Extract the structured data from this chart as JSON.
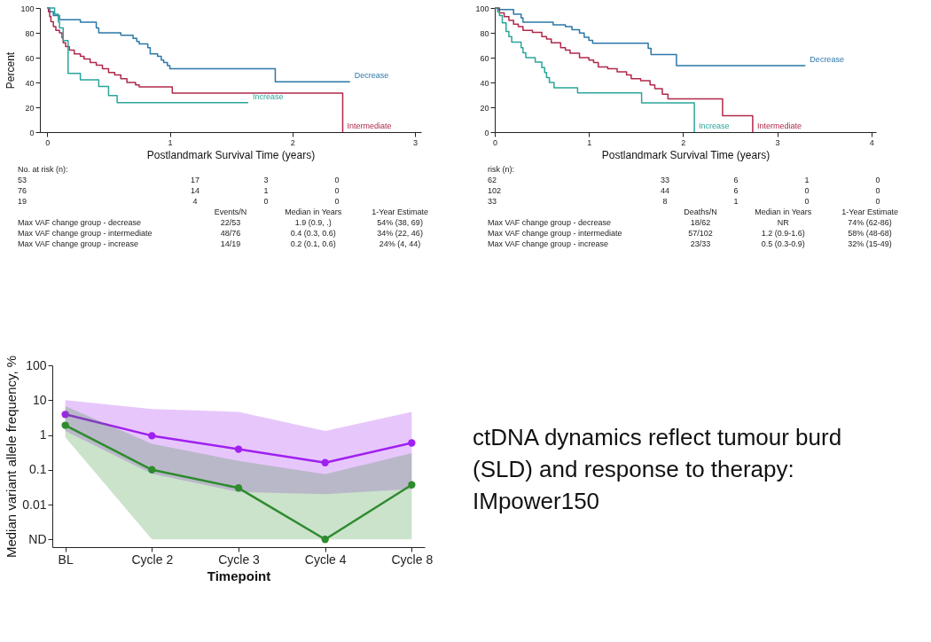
{
  "chart_data": [
    {
      "type": "step",
      "xlabel": "Postlandmark Survival Time (years)",
      "ylabel": "Percent",
      "xlim": [
        -0.06,
        3.05
      ],
      "ylim": [
        0,
        100
      ],
      "xticks": [
        0,
        1,
        2,
        3
      ],
      "yticks": [
        0,
        20,
        40,
        60,
        80,
        100
      ],
      "grid": false,
      "series": [
        {
          "name": "Decrease",
          "color": "#2b78a8",
          "x": [
            0,
            0.02,
            0.05,
            0.1,
            0.27,
            0.4,
            0.42,
            0.6,
            0.7,
            0.73,
            0.75,
            0.82,
            0.84,
            0.9,
            0.93,
            0.95,
            0.98,
            1.0,
            1.86,
            2.47
          ],
          "values": [
            100,
            97,
            94,
            90.5,
            88.6,
            84,
            80,
            78,
            75.5,
            73,
            71,
            68,
            63,
            61,
            58,
            56,
            53.5,
            51,
            40.5,
            40.5
          ]
        },
        {
          "name": "Intermediate",
          "color": "#b0284a",
          "x": [
            0,
            0.01,
            0.02,
            0.03,
            0.05,
            0.07,
            0.1,
            0.12,
            0.13,
            0.15,
            0.18,
            0.22,
            0.27,
            0.3,
            0.35,
            0.4,
            0.45,
            0.5,
            0.55,
            0.6,
            0.65,
            0.72,
            0.75,
            1.02,
            2.41
          ],
          "values": [
            100,
            97,
            93,
            89,
            85,
            82,
            80,
            76,
            72,
            69,
            66,
            63,
            61,
            59,
            56,
            54,
            51,
            48,
            46,
            43,
            40,
            38,
            36.5,
            31.5,
            0
          ]
        },
        {
          "name": "Increase",
          "color": "#2aa59a",
          "x": [
            0,
            0.06,
            0.09,
            0.1,
            0.13,
            0.17,
            0.27,
            0.42,
            0.5,
            0.57,
            1.64
          ],
          "values": [
            100,
            95,
            89,
            84,
            73.7,
            47.4,
            42.1,
            36.8,
            29.4,
            23.7,
            23.7
          ]
        }
      ],
      "annotations": [
        "No. at risk (n):",
        "53\t17\t3\t0",
        "76\t14\t1\t0",
        "19\t4\t0\t0",
        "\tEvents/N\tMedian in Years\t1-Year Estimate",
        "Max VAF change group - decrease\t22/53\t1.9 (0.9, .)\t54% (38, 69)",
        "Max VAF change group - intermediate\t48/76\t0.4 (0.3, 0.6)\t34% (22, 46)",
        "Max VAF change group - increase\t14/19\t0.2 (0.1, 0.6)\t24% (4, 44)"
      ]
    },
    {
      "type": "step",
      "xlabel": "Postlandmark Survival Time (years)",
      "xlim": [
        0,
        4.05
      ],
      "ylim": [
        0,
        100
      ],
      "xticks": [
        0,
        1,
        2,
        3,
        4
      ],
      "yticks": [
        0,
        20,
        40,
        60,
        80,
        100
      ],
      "grid": false,
      "series": [
        {
          "name": "Decrease",
          "color": "#2b78a8",
          "x": [
            0,
            0.03,
            0.2,
            0.28,
            0.3,
            0.62,
            0.75,
            0.82,
            0.9,
            0.95,
            1.0,
            1.04,
            1.63,
            1.66,
            1.93,
            3.3
          ],
          "values": [
            100,
            98.8,
            95,
            92,
            88.5,
            86.5,
            85,
            82.5,
            79.8,
            76.5,
            74,
            71.6,
            67.5,
            62.5,
            53.6,
            53.6
          ]
        },
        {
          "name": "Intermediate",
          "color": "#b0284a",
          "x": [
            0,
            0.05,
            0.1,
            0.15,
            0.2,
            0.25,
            0.3,
            0.4,
            0.5,
            0.55,
            0.6,
            0.7,
            0.75,
            0.8,
            0.9,
            1.0,
            1.05,
            1.1,
            1.2,
            1.3,
            1.4,
            1.45,
            1.55,
            1.65,
            1.7,
            1.78,
            1.84,
            2.42,
            2.74
          ],
          "values": [
            100,
            96,
            93,
            90,
            87,
            85,
            82,
            80.3,
            77,
            75,
            72,
            68,
            66,
            63.5,
            60,
            58,
            56,
            52.5,
            51,
            48.5,
            46,
            43,
            41.5,
            38,
            35,
            30.5,
            26.7,
            13.3,
            0
          ]
        },
        {
          "name": "Increase",
          "color": "#2aa59a",
          "x": [
            0,
            0.03,
            0.05,
            0.08,
            0.12,
            0.15,
            0.18,
            0.28,
            0.3,
            0.33,
            0.43,
            0.5,
            0.53,
            0.55,
            0.58,
            0.63,
            0.88,
            1.56,
            2.12
          ],
          "values": [
            100,
            97,
            94,
            88,
            81,
            77,
            72.5,
            68,
            64,
            60,
            56.5,
            52,
            48,
            44,
            40,
            35.8,
            31.6,
            23.5,
            0
          ]
        }
      ],
      "annotations": [
        "risk (n):",
        "62\t33\t6\t1\t0",
        "102\t44\t6\t0\t0",
        "33\t8\t1\t0\t0",
        "\tDeaths/N\tMedian in Years\t1-Year Estimate",
        "Max VAF change group - decrease\t18/62\tNR\t74% (62-86)",
        "Max VAF change group - intermediate\t57/102\t1.2 (0.9-1.6)\t58% (48-68)",
        "Max VAF change group - increase\t23/33\t0.5 (0.3-0.9)\t32% (15-49)"
      ]
    },
    {
      "type": "line",
      "xlabel": "Timepoint",
      "ylabel": "Median variant allele frequency, %",
      "log": true,
      "marker": "circle",
      "grid": false,
      "categories": [
        "BL",
        "Cycle 2",
        "Cycle 3",
        "Cycle 4",
        "Cycle 8"
      ],
      "ylim": [
        0.0006,
        100
      ],
      "yticks": [
        {
          "value": 0.001,
          "label": "ND"
        },
        0.01,
        0.1,
        1,
        10,
        100
      ],
      "series": [
        {
          "color": "#a020f0",
          "values": [
            3.9,
            0.95,
            0.39,
            0.16,
            0.59
          ],
          "lower": [
            1.3,
            0.077,
            0.023,
            0.02,
            0.028
          ],
          "upper": [
            10,
            5.6,
            4.6,
            1.3,
            4.6
          ]
        },
        {
          "color": "#2e8b2e",
          "values": [
            1.9,
            0.1,
            0.03,
            0.001,
            0.037
          ],
          "lower": [
            0.86,
            0.001,
            0.001,
            0.001,
            0.001
          ],
          "upper": [
            6.7,
            0.56,
            0.18,
            0.075,
            0.3
          ]
        }
      ],
      "annotations": [
        "ctDNA dynamics reflect tumour burd (SLD) and response to therapy: IMpower150"
      ]
    }
  ]
}
